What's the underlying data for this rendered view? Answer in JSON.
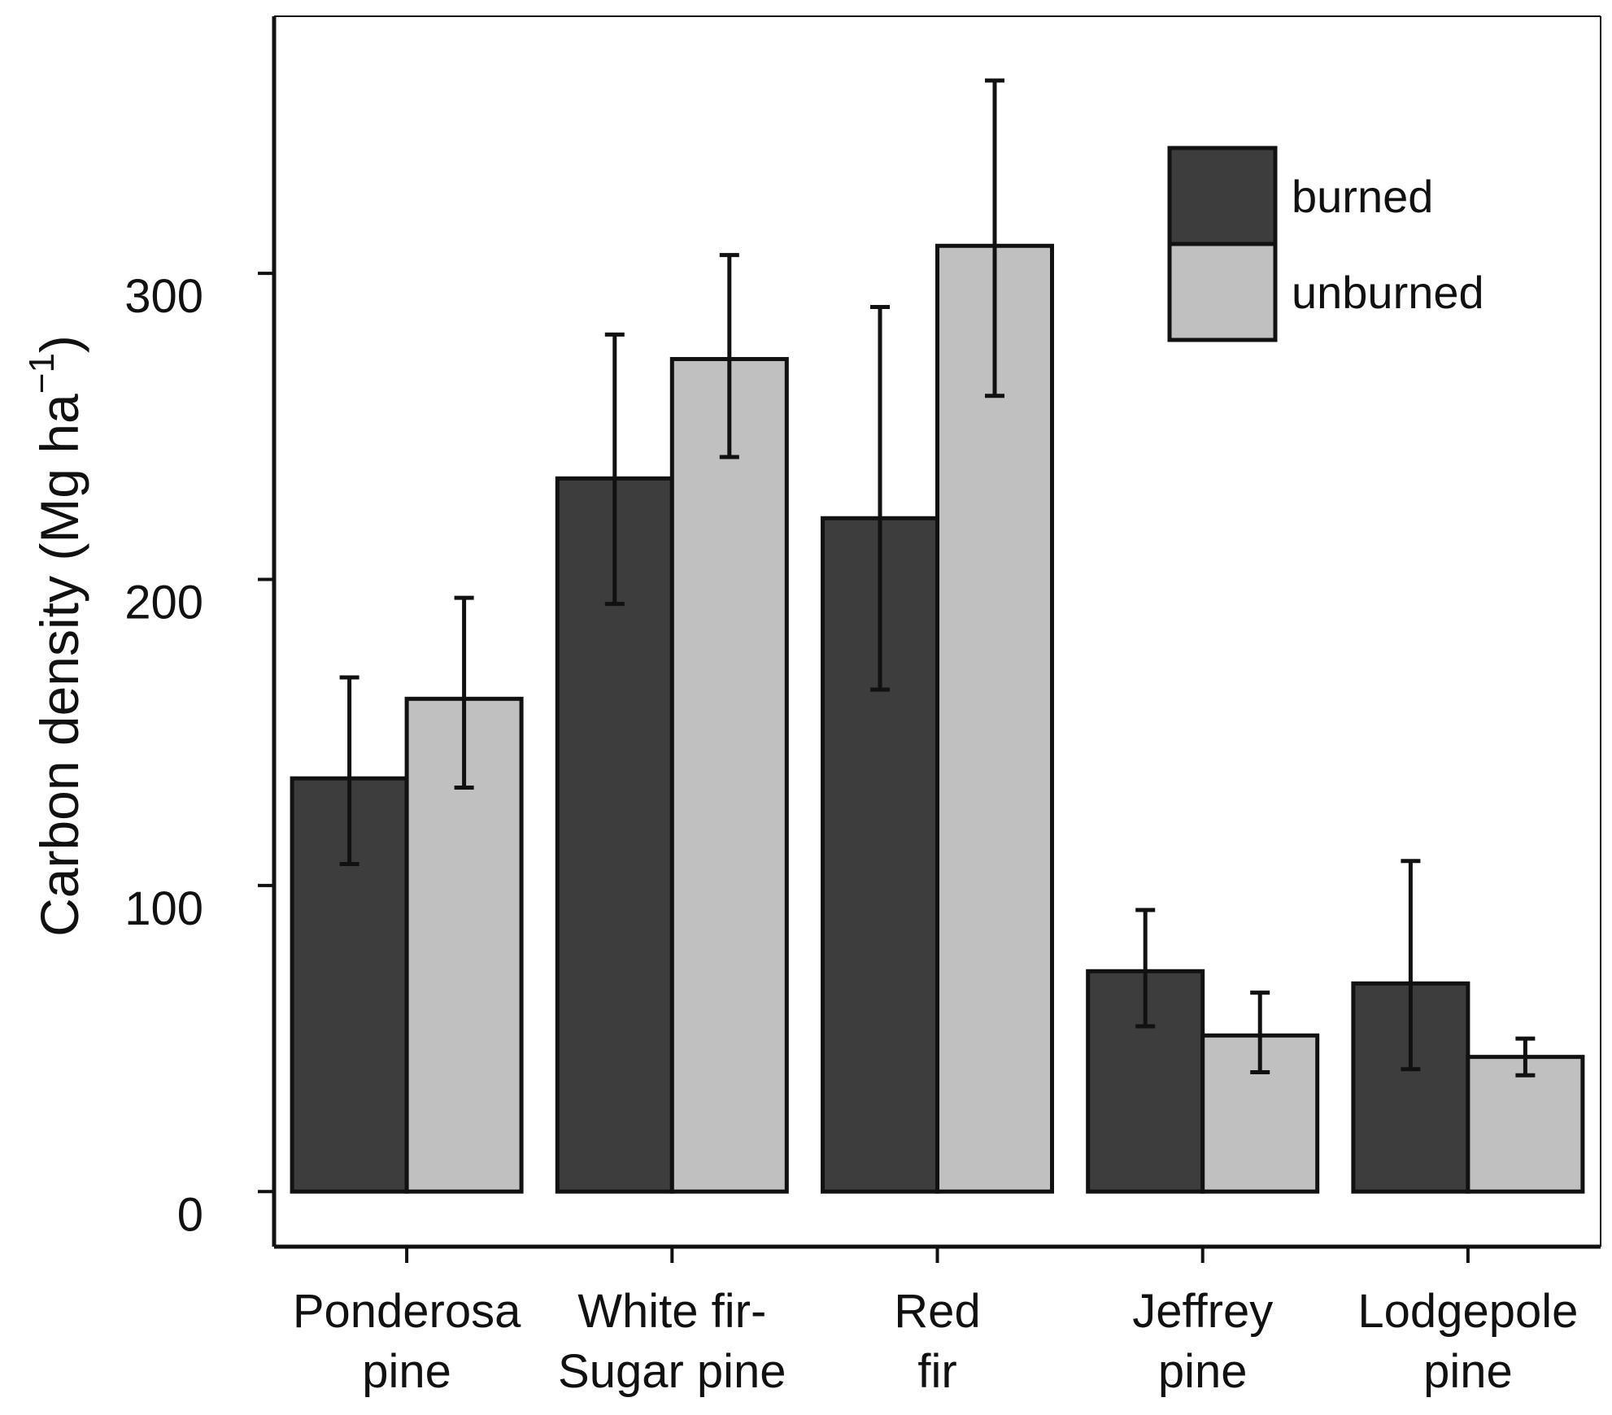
{
  "chart_data": {
    "type": "bar",
    "title": "",
    "xlabel": "",
    "ylabel_main": "Carbon density (Mg ha",
    "ylabel_exp": "−1",
    "ylabel_close": ")",
    "ylim": [
      -18,
      384
    ],
    "yticks": [
      0,
      100,
      200,
      300
    ],
    "ytick_labels": [
      "0",
      "100",
      "200",
      "300"
    ],
    "categories": [
      [
        "Ponderosa",
        "pine"
      ],
      [
        "White fir-",
        "Sugar pine"
      ],
      [
        "Red",
        "fir"
      ],
      [
        "Jeffrey",
        "pine"
      ],
      [
        "Lodgepole",
        "pine"
      ]
    ],
    "series": [
      {
        "name": "burned",
        "color": "#3d3d3d",
        "values": [
          135,
          233,
          220,
          72,
          68
        ],
        "err_low": [
          107,
          192,
          164,
          54,
          40
        ],
        "err_high": [
          168,
          280,
          289,
          92,
          108
        ]
      },
      {
        "name": "unburned",
        "color": "#c0c0c0",
        "values": [
          161,
          272,
          309,
          51,
          44
        ],
        "err_low": [
          132,
          240,
          260,
          39,
          38
        ],
        "err_high": [
          194,
          306,
          363,
          65,
          50
        ]
      }
    ],
    "legend": {
      "position": "top-right",
      "labels": [
        "burned",
        "unburned"
      ]
    },
    "grid": false
  }
}
